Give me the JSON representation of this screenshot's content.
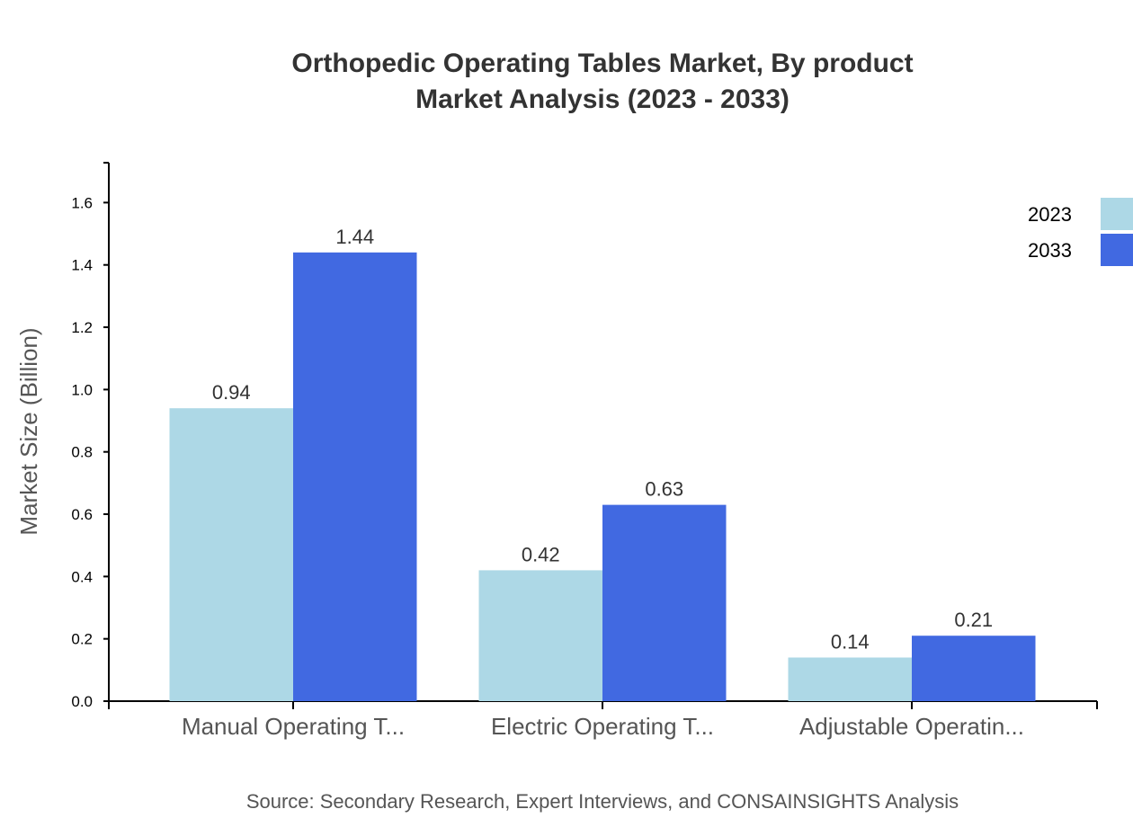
{
  "chart_data": {
    "type": "bar",
    "title": "Orthopedic Operating Tables Market, By product",
    "subtitle": "Market Analysis (2023 - 2033)",
    "xlabel": "",
    "ylabel": "Market Size (Billion)",
    "categories": [
      "Manual Operating T...",
      "Electric Operating T...",
      "Adjustable Operatin..."
    ],
    "series": [
      {
        "name": "2023",
        "values": [
          0.94,
          0.42,
          0.14
        ],
        "color": "#add8e6"
      },
      {
        "name": "2033",
        "values": [
          1.44,
          0.63,
          0.21
        ],
        "color": "#4169e1"
      }
    ],
    "ylim": [
      0,
      1.728
    ],
    "yticks": [
      "0.0",
      "0.2",
      "0.4",
      "0.6",
      "0.8",
      "1.0",
      "1.2",
      "1.4",
      "1.6"
    ],
    "grid": false,
    "legend": "top-right",
    "source": "Source: Secondary Research, Expert Interviews, and CONSAINSIGHTS Analysis"
  }
}
